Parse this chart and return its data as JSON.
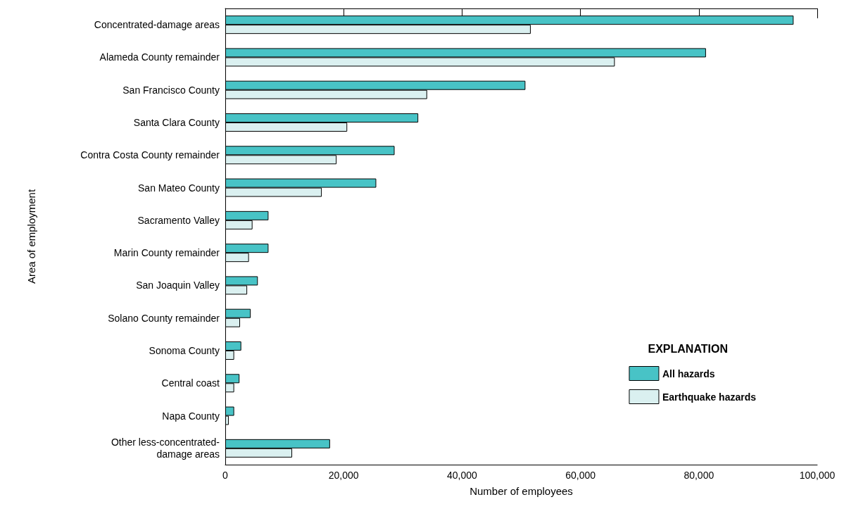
{
  "chart_data": {
    "type": "bar",
    "orientation": "horizontal",
    "xlabel": "Number of employees",
    "ylabel": "Area of employment",
    "legend_title": "EXPLANATION",
    "legend": "bottom right",
    "categories": [
      "Concentrated-damage areas",
      "Alameda County remainder",
      "San Francisco County",
      "Santa Clara County",
      "Contra Costa County remainder",
      "San Mateo County",
      "Sacramento Valley",
      "Marin County remainder",
      "San Joaquin Valley",
      "Solano County remainder",
      "Sonoma County",
      "Central coast",
      "Napa County",
      "Other less-concentrated-\ndamage areas"
    ],
    "series": [
      {
        "name": "All hazards",
        "color": "#48c3c6",
        "values": [
          96000,
          81200,
          50700,
          32600,
          28600,
          25500,
          7300,
          7300,
          5500,
          4300,
          2700,
          2400,
          1500,
          17700
        ]
      },
      {
        "name": "Earthquake hazards",
        "color": "#daf0f0",
        "values": [
          51600,
          65800,
          34100,
          20600,
          18800,
          16300,
          4600,
          4000,
          3700,
          2500,
          1500,
          1500,
          600,
          11300
        ]
      }
    ],
    "xlim": [
      0,
      100000
    ],
    "xticks": [
      0,
      {
        "value": 20000,
        "label": "20,000"
      },
      {
        "value": 40000,
        "label": "40,000"
      },
      {
        "value": 60000,
        "label": "60,000"
      },
      {
        "value": 80000,
        "label": "80,000"
      },
      {
        "value": 100000,
        "label": "100,000"
      }
    ],
    "grid": false
  }
}
